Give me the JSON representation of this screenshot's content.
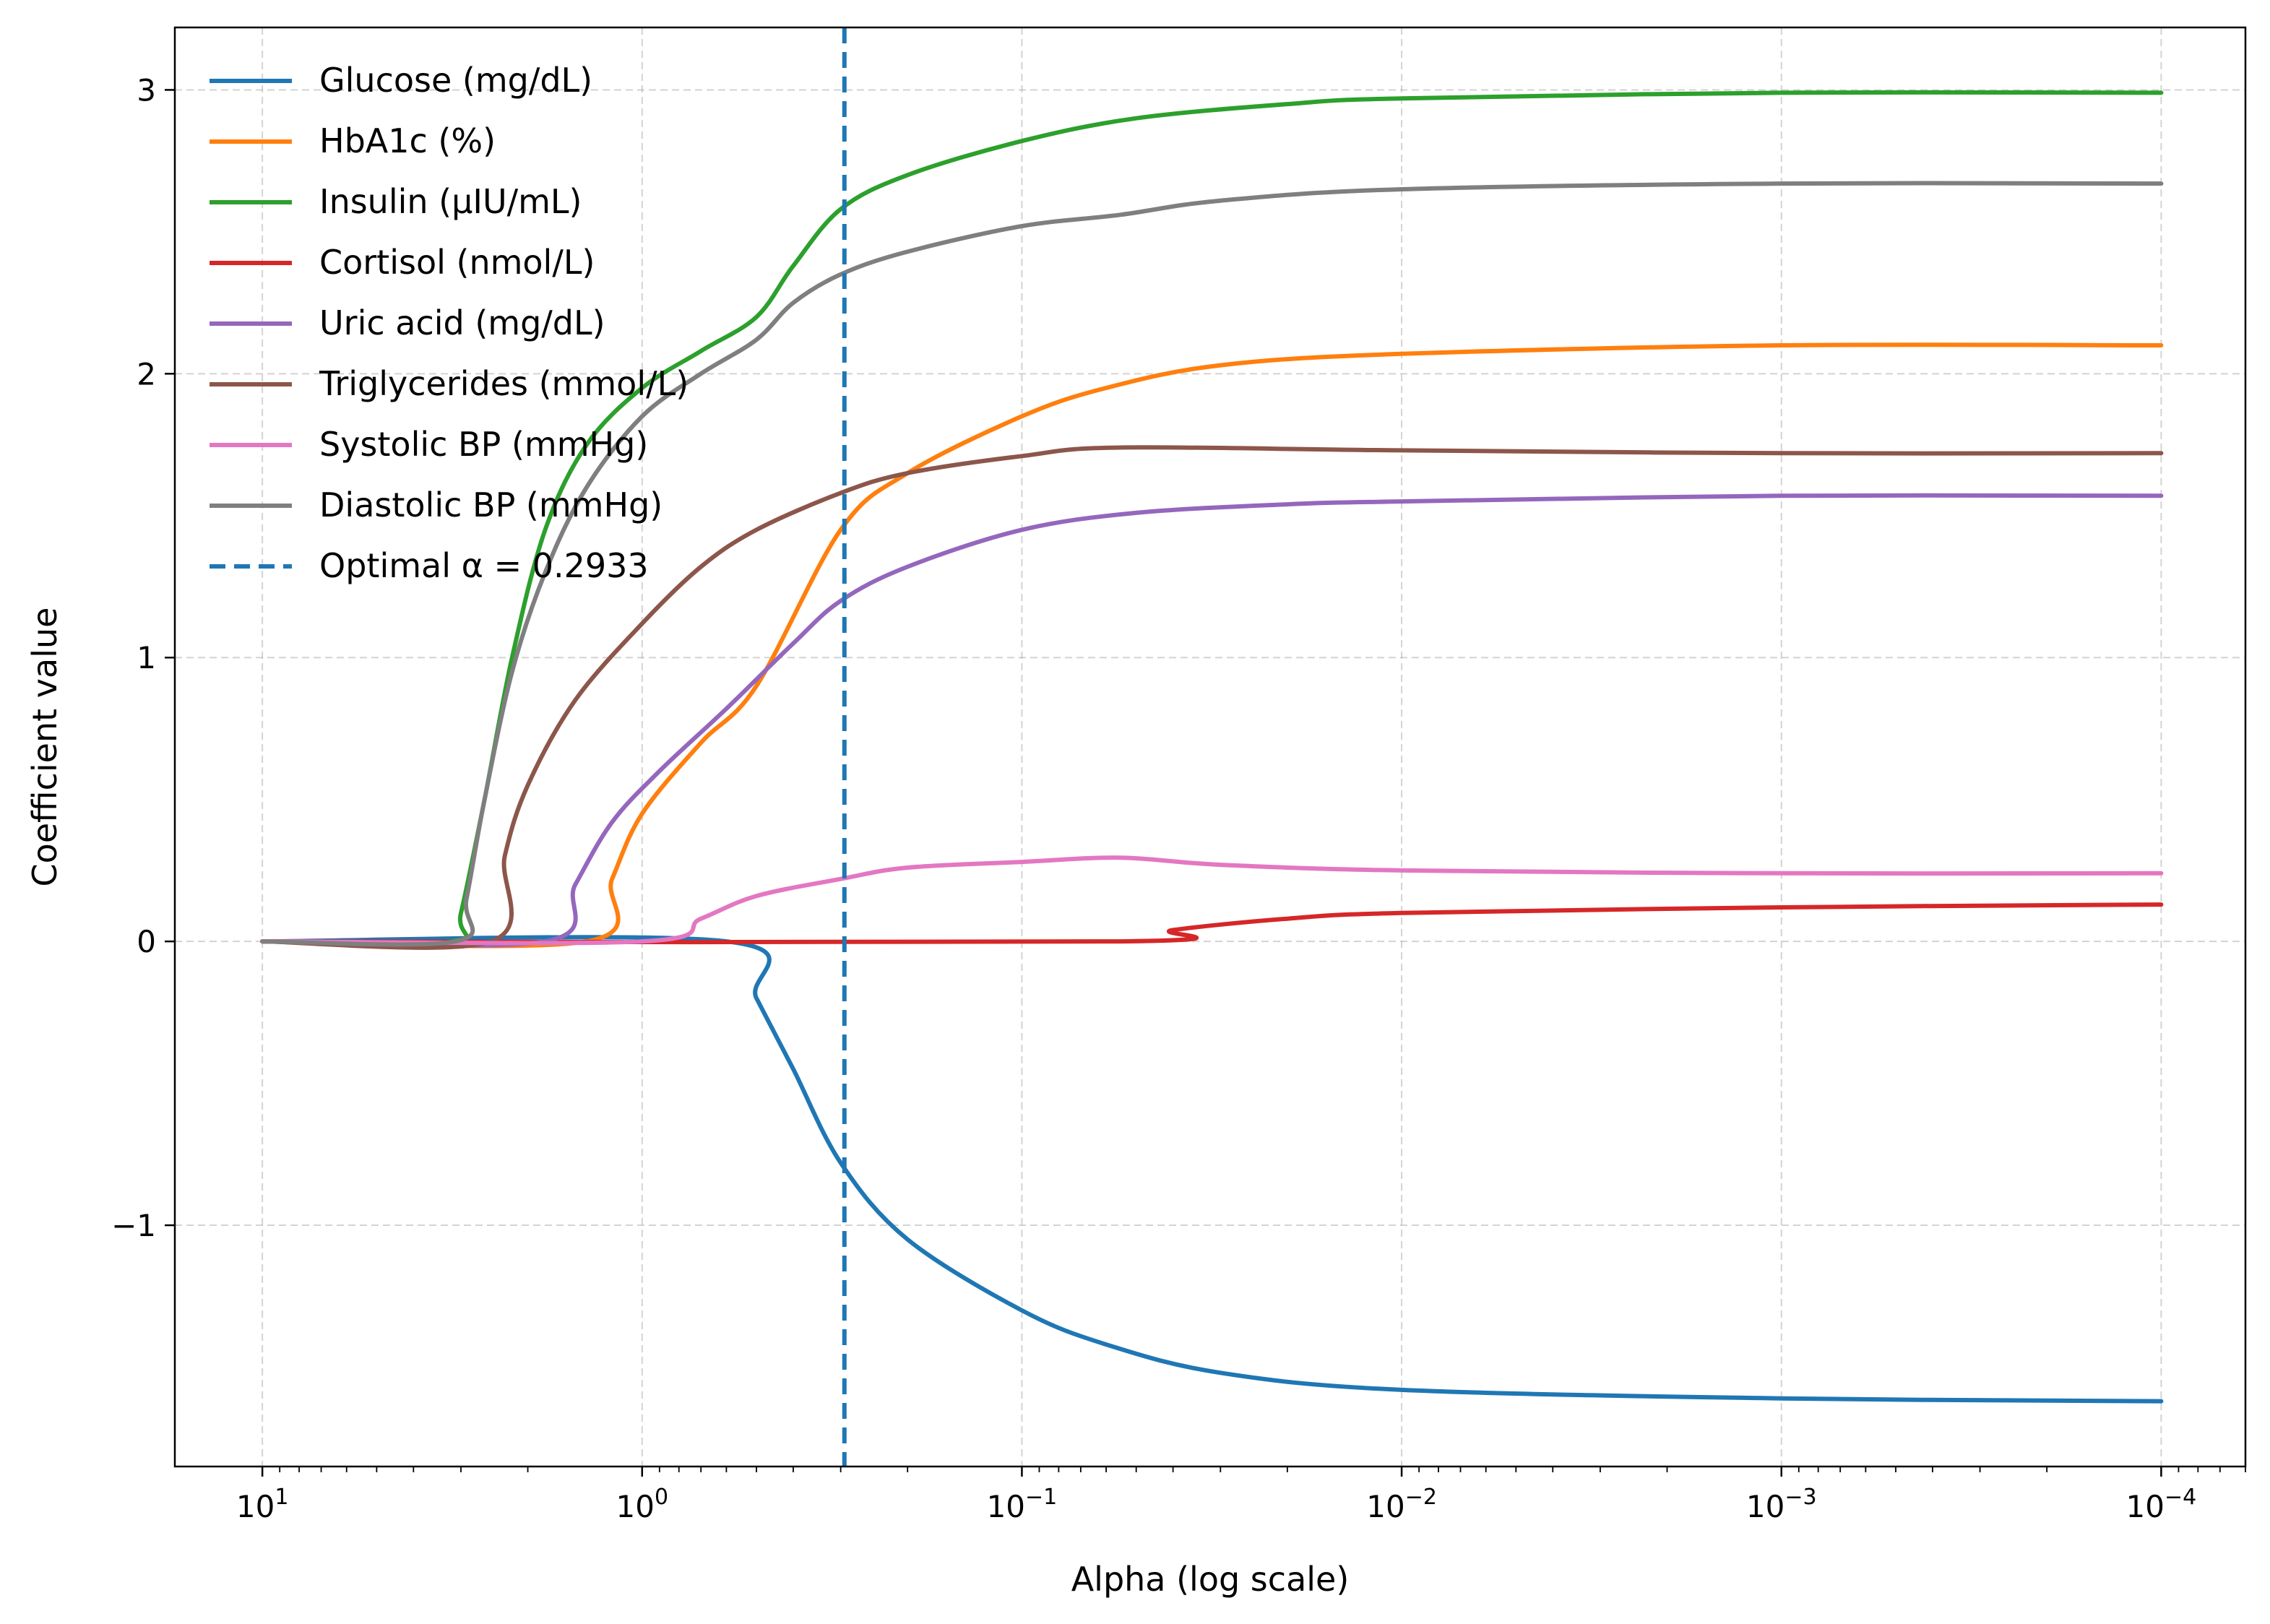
{
  "chart_data": {
    "type": "line",
    "title": "",
    "xlabel": "Alpha (log scale)",
    "ylabel": "Coefficient value",
    "x_scale": "log",
    "x_reversed": true,
    "xlim": [
      17,
      6e-05
    ],
    "ylim": [
      -1.85,
      3.22
    ],
    "grid": true,
    "legend_position": "top-left",
    "x_ticks": [
      {
        "value": 10,
        "base": "10",
        "exp": "1"
      },
      {
        "value": 1,
        "base": "10",
        "exp": "0"
      },
      {
        "value": 0.1,
        "base": "10",
        "exp": "−1"
      },
      {
        "value": 0.01,
        "base": "10",
        "exp": "−2"
      },
      {
        "value": 0.001,
        "base": "10",
        "exp": "−3"
      },
      {
        "value": 0.0001,
        "base": "10",
        "exp": "−4"
      }
    ],
    "y_ticks": [
      {
        "value": 3,
        "label": "3"
      },
      {
        "value": 2,
        "label": "2"
      },
      {
        "value": 1,
        "label": "1"
      },
      {
        "value": 0,
        "label": "0"
      },
      {
        "value": -1,
        "label": "−1"
      }
    ],
    "optimal_alpha": {
      "value": 0.2933,
      "label": "Optimal α = 0.2933",
      "color": "#1f77b4"
    },
    "series": [
      {
        "name": "Glucose (mg/dL)",
        "color": "#1f77b4",
        "points": [
          [
            10,
            0
          ],
          [
            0.6,
            0
          ],
          [
            0.5,
            -0.2
          ],
          [
            0.4,
            -0.45
          ],
          [
            0.3,
            -0.78
          ],
          [
            0.2,
            -1.05
          ],
          [
            0.1,
            -1.3
          ],
          [
            0.06,
            -1.42
          ],
          [
            0.03,
            -1.52
          ],
          [
            0.01,
            -1.58
          ],
          [
            0.001,
            -1.61
          ],
          [
            0.0001,
            -1.62
          ]
        ]
      },
      {
        "name": "HbA1c (%)",
        "color": "#ff7f0e",
        "points": [
          [
            10,
            0
          ],
          [
            1.4,
            0
          ],
          [
            1.2,
            0.22
          ],
          [
            1.0,
            0.45
          ],
          [
            0.7,
            0.7
          ],
          [
            0.5,
            0.9
          ],
          [
            0.3,
            1.45
          ],
          [
            0.2,
            1.65
          ],
          [
            0.1,
            1.85
          ],
          [
            0.06,
            1.95
          ],
          [
            0.03,
            2.03
          ],
          [
            0.01,
            2.07
          ],
          [
            0.001,
            2.1
          ],
          [
            0.0001,
            2.1
          ]
        ]
      },
      {
        "name": "Insulin (µIU/mL)",
        "color": "#2ca02c",
        "points": [
          [
            10,
            0
          ],
          [
            3.2,
            0
          ],
          [
            3.0,
            0.1
          ],
          [
            2.6,
            0.5
          ],
          [
            2.2,
            1.0
          ],
          [
            1.8,
            1.45
          ],
          [
            1.4,
            1.75
          ],
          [
            1.0,
            1.95
          ],
          [
            0.7,
            2.08
          ],
          [
            0.5,
            2.2
          ],
          [
            0.4,
            2.38
          ],
          [
            0.3,
            2.58
          ],
          [
            0.2,
            2.7
          ],
          [
            0.1,
            2.82
          ],
          [
            0.05,
            2.9
          ],
          [
            0.02,
            2.95
          ],
          [
            0.01,
            2.97
          ],
          [
            0.001,
            2.99
          ],
          [
            0.0001,
            2.99
          ]
        ]
      },
      {
        "name": "Cortisol (nmol/L)",
        "color": "#d62728",
        "points": [
          [
            10,
            0
          ],
          [
            0.055,
            0
          ],
          [
            0.04,
            0.04
          ],
          [
            0.02,
            0.08
          ],
          [
            0.01,
            0.1
          ],
          [
            0.001,
            0.12
          ],
          [
            0.0001,
            0.13
          ]
        ]
      },
      {
        "name": "Uric acid (mg/dL)",
        "color": "#9467bd",
        "points": [
          [
            10,
            0
          ],
          [
            1.8,
            0
          ],
          [
            1.5,
            0.2
          ],
          [
            1.2,
            0.42
          ],
          [
            0.9,
            0.6
          ],
          [
            0.6,
            0.82
          ],
          [
            0.4,
            1.05
          ],
          [
            0.3,
            1.2
          ],
          [
            0.2,
            1.32
          ],
          [
            0.1,
            1.45
          ],
          [
            0.05,
            1.51
          ],
          [
            0.02,
            1.54
          ],
          [
            0.01,
            1.55
          ],
          [
            0.001,
            1.57
          ],
          [
            0.0001,
            1.57
          ]
        ]
      },
      {
        "name": "Triglycerides (mmol/L)",
        "color": "#8c564b",
        "points": [
          [
            10,
            0
          ],
          [
            2.5,
            0
          ],
          [
            2.3,
            0.3
          ],
          [
            2.0,
            0.55
          ],
          [
            1.5,
            0.85
          ],
          [
            1.0,
            1.12
          ],
          [
            0.7,
            1.32
          ],
          [
            0.5,
            1.45
          ],
          [
            0.3,
            1.58
          ],
          [
            0.2,
            1.65
          ],
          [
            0.1,
            1.71
          ],
          [
            0.055,
            1.74
          ],
          [
            0.01,
            1.73
          ],
          [
            0.001,
            1.72
          ],
          [
            0.0001,
            1.72
          ]
        ]
      },
      {
        "name": "Systolic BP (mmHg)",
        "color": "#e377c2",
        "points": [
          [
            10,
            0
          ],
          [
            1.0,
            0
          ],
          [
            0.7,
            0.08
          ],
          [
            0.5,
            0.16
          ],
          [
            0.3,
            0.22
          ],
          [
            0.2,
            0.26
          ],
          [
            0.1,
            0.28
          ],
          [
            0.055,
            0.295
          ],
          [
            0.03,
            0.27
          ],
          [
            0.01,
            0.25
          ],
          [
            0.001,
            0.24
          ],
          [
            0.0001,
            0.24
          ]
        ]
      },
      {
        "name": "Diastolic BP (mmHg)",
        "color": "#7f7f7f",
        "points": [
          [
            10,
            0
          ],
          [
            3.1,
            0
          ],
          [
            2.9,
            0.15
          ],
          [
            2.6,
            0.5
          ],
          [
            2.2,
            0.95
          ],
          [
            1.8,
            1.3
          ],
          [
            1.4,
            1.6
          ],
          [
            1.0,
            1.85
          ],
          [
            0.7,
            2.0
          ],
          [
            0.5,
            2.12
          ],
          [
            0.4,
            2.25
          ],
          [
            0.3,
            2.35
          ],
          [
            0.2,
            2.43
          ],
          [
            0.1,
            2.52
          ],
          [
            0.055,
            2.56
          ],
          [
            0.03,
            2.61
          ],
          [
            0.01,
            2.65
          ],
          [
            0.001,
            2.67
          ],
          [
            0.0001,
            2.67
          ]
        ]
      }
    ]
  }
}
